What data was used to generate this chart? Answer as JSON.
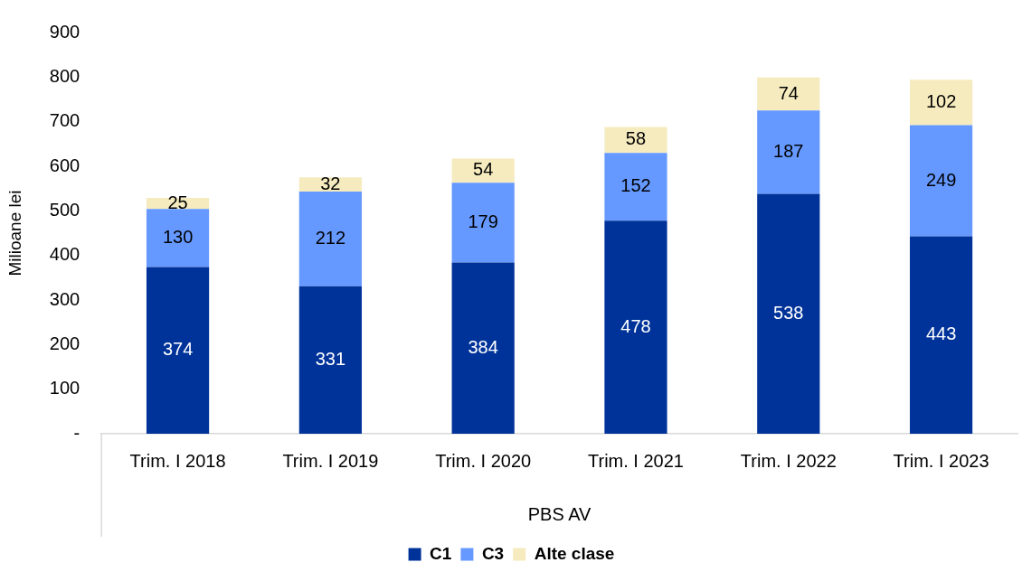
{
  "chart_data": {
    "type": "bar",
    "stacked": true,
    "xlabel": "PBS AV",
    "ylabel": "Milioane lei",
    "categories": [
      "Trim. I 2018",
      "Trim. I 2019",
      "Trim. I 2020",
      "Trim. I 2021",
      "Trim. I 2022",
      "Trim. I 2023"
    ],
    "ylim": [
      0,
      900
    ],
    "yticks": [
      {
        "value": 0,
        "label": "-"
      },
      100,
      200,
      300,
      400,
      500,
      600,
      700,
      800,
      900
    ],
    "series": [
      {
        "name": "C1",
        "color": "#003399",
        "values": [
          374,
          331,
          384,
          478,
          538,
          443
        ]
      },
      {
        "name": "C3",
        "color": "#6699ff",
        "values": [
          130,
          212,
          179,
          152,
          187,
          249
        ]
      },
      {
        "name": "Alte clase",
        "color": "#f6ebbf",
        "values": [
          25,
          32,
          54,
          58,
          74,
          102
        ]
      }
    ],
    "data_labels": true,
    "legend": "bottom"
  }
}
